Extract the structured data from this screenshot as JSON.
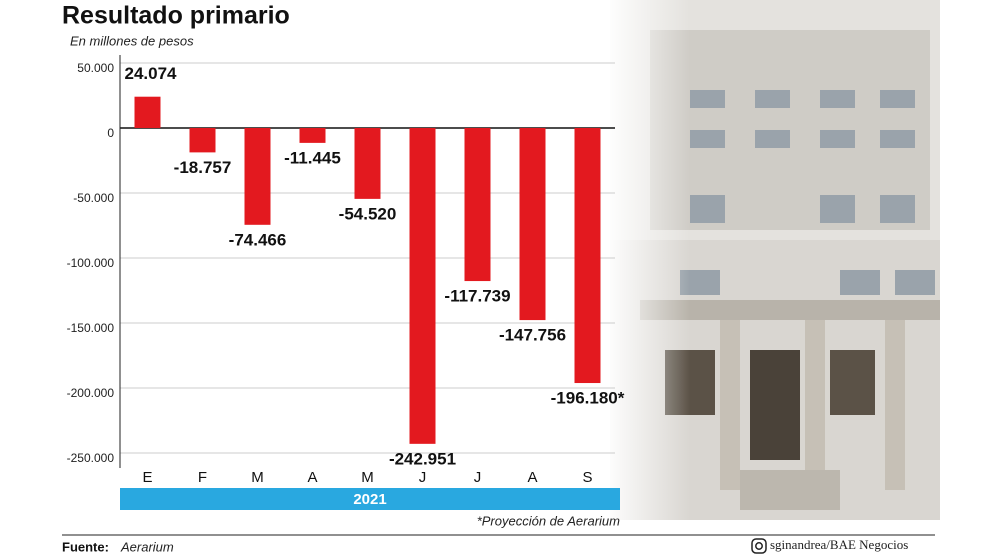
{
  "chart_data": {
    "type": "bar",
    "title": "Resultado primario",
    "subtitle": "En millones de pesos",
    "categories": [
      "E",
      "F",
      "M",
      "A",
      "M",
      "J",
      "J",
      "A",
      "S"
    ],
    "values": [
      24074,
      -18757,
      -74466,
      -11445,
      -54520,
      -242951,
      -117739,
      -147756,
      -196180
    ],
    "value_labels": [
      "24.074",
      "-18.757",
      "-74.466",
      "-11.445",
      "-54.520",
      "-242.951",
      "-117.739",
      "-147.756",
      "-196.180*"
    ],
    "color": "#e3191f",
    "ylim": [
      -250000,
      50000
    ],
    "yticks": [
      {
        "value": 50000,
        "label": "50.000"
      },
      0,
      {
        "value": -50000,
        "label": "-50.000"
      },
      {
        "value": -100000,
        "label": "-100.000"
      },
      {
        "value": -150000,
        "label": "-150.000"
      },
      {
        "value": -200000,
        "label": "-200.000"
      },
      {
        "value": -250000,
        "label": "-250.000"
      }
    ],
    "grid": true,
    "band_label": "2021",
    "note": "*Proyección de Aerarium",
    "source_label": "Fuente:",
    "source": "Aerarium",
    "credit": "sginandrea/BAE Negocios"
  }
}
